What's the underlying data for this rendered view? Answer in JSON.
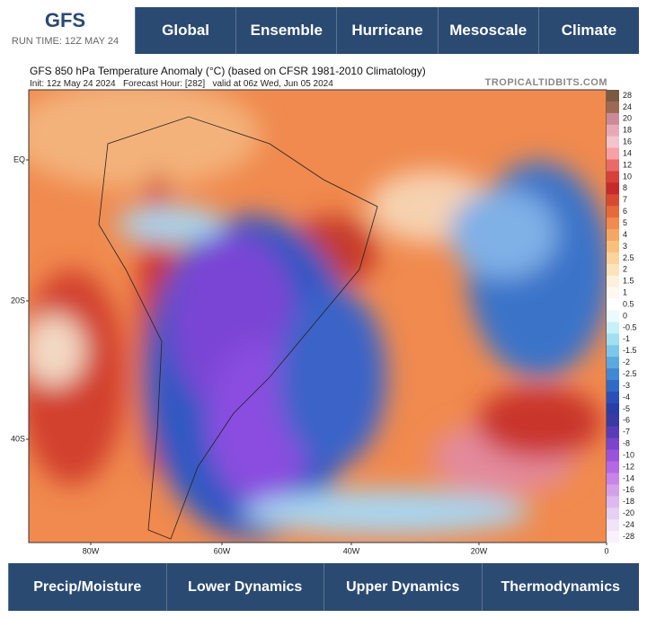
{
  "header": {
    "logo": "GFS",
    "run_time": "RUN TIME: 12Z MAY 24"
  },
  "nav": [
    "Global",
    "Ensemble",
    "Hurricane",
    "Mesoscale",
    "Climate"
  ],
  "map": {
    "title": "GFS 850 hPa Temperature Anomaly (°C) (based on CFSR 1981-2010 Climatology)",
    "subtitle": "Init: 12z May 24 2024   Forecast Hour: [282]   valid at 06z Wed, Jun 05 2024",
    "credit": "TROPICALTIDBITS.COM",
    "lat_labels": [
      "EQ",
      "20S",
      "40S"
    ],
    "lon_labels": [
      "80W",
      "60W",
      "40W",
      "20W",
      "0"
    ],
    "colorbar": [
      "28",
      "24",
      "20",
      "18",
      "16",
      "14",
      "12",
      "10",
      "8",
      "7",
      "6",
      "5",
      "4",
      "3",
      "2.5",
      "2",
      "1.5",
      "1",
      "0.5",
      "0",
      "-0.5",
      "-1",
      "-1.5",
      "-2",
      "-2.5",
      "-3",
      "-4",
      "-5",
      "-6",
      "-7",
      "-8",
      "-10",
      "-12",
      "-14",
      "-16",
      "-18",
      "-20",
      "-24",
      "-28"
    ]
  },
  "bottom_nav": [
    "Precip/Moisture",
    "Lower Dynamics",
    "Upper Dynamics",
    "Thermodynamics"
  ]
}
